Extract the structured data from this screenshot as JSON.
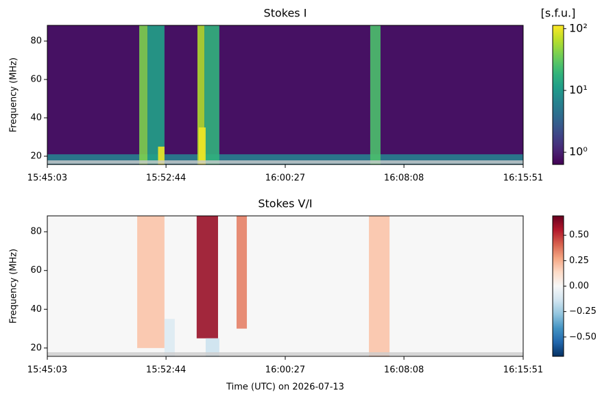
{
  "chart_data": [
    {
      "type": "heatmap",
      "title": "Stokes I",
      "ylabel": "Frequency (MHz)",
      "xlim": [
        0,
        1848
      ],
      "xticks": [
        {
          "value": 0,
          "label": "15:45:03"
        },
        {
          "value": 461,
          "label": "15:52:44"
        },
        {
          "value": 924,
          "label": "16:00:27"
        },
        {
          "value": 1385,
          "label": "16:08:08"
        },
        {
          "value": 1848,
          "label": "16:15:51"
        }
      ],
      "ylim": [
        15.7,
        88.2
      ],
      "yticks": [
        20,
        40,
        60,
        80
      ],
      "colorbar": {
        "label": "[s.f.u.]",
        "colormap": "viridis",
        "log": true,
        "lim": [
          0.634,
          113
        ],
        "ticks": [
          {
            "value": 1,
            "label": "10⁰"
          },
          {
            "value": 10,
            "label": "10¹"
          },
          {
            "value": 100,
            "label": "10²"
          }
        ]
      },
      "background": 0.8,
      "bursts": [
        {
          "x": [
            0,
            1848
          ],
          "y": [
            15.7,
            21
          ],
          "value": 6
        },
        {
          "x": [
            357,
            389
          ],
          "y": [
            15.7,
            88.2
          ],
          "value": 40
        },
        {
          "x": [
            389,
            455
          ],
          "y": [
            15.7,
            88.2
          ],
          "value": 12
        },
        {
          "x": [
            430,
            455
          ],
          "y": [
            15.7,
            25
          ],
          "value": 100
        },
        {
          "x": [
            583,
            610
          ],
          "y": [
            15.7,
            88.2
          ],
          "value": 60
        },
        {
          "x": [
            610,
            668
          ],
          "y": [
            15.7,
            88.2
          ],
          "value": 18
        },
        {
          "x": [
            588,
            615
          ],
          "y": [
            15.7,
            35
          ],
          "value": 100
        },
        {
          "x": [
            1254,
            1294
          ],
          "y": [
            15.7,
            88.2
          ],
          "value": 25
        }
      ]
    },
    {
      "type": "heatmap",
      "title": "Stokes V/I",
      "ylabel": "Frequency (MHz)",
      "xlabel": "Time (UTC) on 2026-07-13",
      "xlim": [
        0,
        1848
      ],
      "xticks": [
        {
          "value": 0,
          "label": "15:45:03"
        },
        {
          "value": 461,
          "label": "15:52:44"
        },
        {
          "value": 924,
          "label": "16:00:27"
        },
        {
          "value": 1385,
          "label": "16:08:08"
        },
        {
          "value": 1848,
          "label": "16:15:51"
        }
      ],
      "ylim": [
        15.7,
        88.2
      ],
      "yticks": [
        20,
        40,
        60,
        80
      ],
      "colorbar": {
        "colormap": "RdBu_r",
        "log": false,
        "lim": [
          -0.69,
          0.69
        ],
        "ticks": [
          {
            "value": 0.5,
            "label": "0.50"
          },
          {
            "value": 0.25,
            "label": "0.25"
          },
          {
            "value": 0,
            "label": "0.00"
          },
          {
            "value": -0.25,
            "label": "−0.25"
          },
          {
            "value": -0.5,
            "label": "−0.50"
          }
        ]
      },
      "background": 0,
      "bursts": [
        {
          "x": [
            349,
            455
          ],
          "y": [
            20,
            88.2
          ],
          "value": 0.2
        },
        {
          "x": [
            580,
            663
          ],
          "y": [
            25,
            88.2
          ],
          "value": 0.6
        },
        {
          "x": [
            735,
            775
          ],
          "y": [
            30,
            88.2
          ],
          "value": 0.35
        },
        {
          "x": [
            1249,
            1329
          ],
          "y": [
            15.7,
            88.2
          ],
          "value": 0.2
        },
        {
          "x": [
            455,
            495
          ],
          "y": [
            15.7,
            35
          ],
          "value": -0.1
        },
        {
          "x": [
            615,
            668
          ],
          "y": [
            15.7,
            25
          ],
          "value": -0.15
        }
      ]
    }
  ]
}
